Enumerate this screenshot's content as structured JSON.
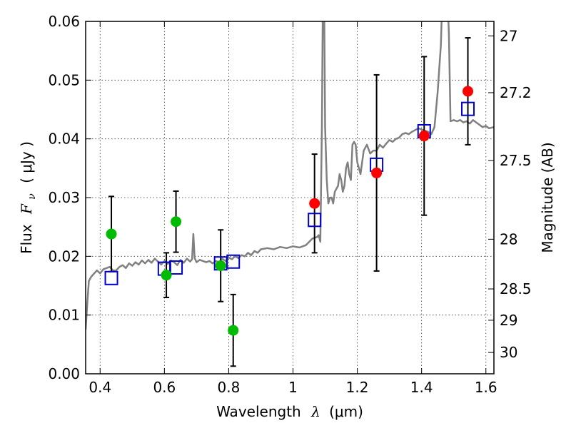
{
  "chart_data": {
    "type": "scatter",
    "xlabel": {
      "prefix": "Wavelength",
      "symbol": "λ",
      "unit": "(μm)"
    },
    "ylabel": {
      "prefix": "Flux",
      "symbol": "F",
      "sub": "ν",
      "unit": "( μJy )"
    },
    "y2label": "Magnitude (AB)",
    "xlim": [
      0.355,
      1.625
    ],
    "ylim": [
      0.0,
      0.06
    ],
    "xticks": [
      0.4,
      0.6,
      0.8,
      1.0,
      1.2,
      1.4,
      1.6
    ],
    "xtick_labels": [
      "0.4",
      "0.6",
      "0.8",
      "1",
      "1.2",
      "1.4",
      "1.6"
    ],
    "yticks": [
      0.0,
      0.01,
      0.02,
      0.03,
      0.04,
      0.05,
      0.06
    ],
    "ytick_labels": [
      "0.00",
      "0.01",
      "0.02",
      "0.03",
      "0.04",
      "0.05",
      "0.06"
    ],
    "mag_ticks": [
      {
        "label": "27",
        "flux": 0.05754
      },
      {
        "label": "27.2",
        "flux": 0.04786
      },
      {
        "label": "27.5",
        "flux": 0.03631
      },
      {
        "label": "28",
        "flux": 0.02291
      },
      {
        "label": "28.5",
        "flux": 0.01445
      },
      {
        "label": "29",
        "flux": 0.00912
      },
      {
        "label": "30",
        "flux": 0.00363
      }
    ],
    "grid": true,
    "colors": {
      "green": "#00bb00",
      "red": "#ff0000",
      "model": "#0000cc",
      "sed": "#808080"
    },
    "observed_green": [
      {
        "x": 0.435,
        "y": 0.0238,
        "err": 0.0064
      },
      {
        "x": 0.606,
        "y": 0.0168,
        "err": 0.0038
      },
      {
        "x": 0.636,
        "y": 0.0259,
        "err": 0.0052
      },
      {
        "x": 0.775,
        "y": 0.0184,
        "err": 0.0061
      },
      {
        "x": 0.814,
        "y": 0.0074,
        "err": 0.0061
      }
    ],
    "observed_red": [
      {
        "x": 1.067,
        "y": 0.029,
        "err": 0.0084
      },
      {
        "x": 1.26,
        "y": 0.0342,
        "err": 0.0167
      },
      {
        "x": 1.408,
        "y": 0.0405,
        "err": 0.0135
      },
      {
        "x": 1.544,
        "y": 0.0481,
        "err": 0.0091
      }
    ],
    "model_fluxes": [
      {
        "x": 0.435,
        "y": 0.0163
      },
      {
        "x": 0.6,
        "y": 0.0179
      },
      {
        "x": 0.636,
        "y": 0.0181
      },
      {
        "x": 0.775,
        "y": 0.0188
      },
      {
        "x": 0.814,
        "y": 0.0191
      },
      {
        "x": 1.067,
        "y": 0.0262
      },
      {
        "x": 1.26,
        "y": 0.0356
      },
      {
        "x": 1.408,
        "y": 0.0413
      },
      {
        "x": 1.544,
        "y": 0.0451
      }
    ],
    "sed_curve": [
      [
        0.355,
        0.0075
      ],
      [
        0.36,
        0.012
      ],
      [
        0.365,
        0.0158
      ],
      [
        0.372,
        0.0165
      ],
      [
        0.38,
        0.017
      ],
      [
        0.39,
        0.0176
      ],
      [
        0.4,
        0.0171
      ],
      [
        0.41,
        0.0178
      ],
      [
        0.42,
        0.018
      ],
      [
        0.43,
        0.0182
      ],
      [
        0.44,
        0.0176
      ],
      [
        0.45,
        0.0176
      ],
      [
        0.46,
        0.0182
      ],
      [
        0.47,
        0.0185
      ],
      [
        0.48,
        0.018
      ],
      [
        0.49,
        0.0188
      ],
      [
        0.5,
        0.0184
      ],
      [
        0.51,
        0.019
      ],
      [
        0.52,
        0.0186
      ],
      [
        0.53,
        0.0193
      ],
      [
        0.54,
        0.0188
      ],
      [
        0.55,
        0.0194
      ],
      [
        0.56,
        0.0189
      ],
      [
        0.57,
        0.0196
      ],
      [
        0.58,
        0.0191
      ],
      [
        0.59,
        0.0186
      ],
      [
        0.6,
        0.0192
      ],
      [
        0.61,
        0.0187
      ],
      [
        0.62,
        0.0193
      ],
      [
        0.63,
        0.019
      ],
      [
        0.64,
        0.0185
      ],
      [
        0.65,
        0.0194
      ],
      [
        0.66,
        0.0189
      ],
      [
        0.67,
        0.0196
      ],
      [
        0.68,
        0.0191
      ],
      [
        0.686,
        0.0195
      ],
      [
        0.69,
        0.0238
      ],
      [
        0.694,
        0.0197
      ],
      [
        0.7,
        0.019
      ],
      [
        0.71,
        0.0194
      ],
      [
        0.72,
        0.0192
      ],
      [
        0.73,
        0.019
      ],
      [
        0.74,
        0.0192
      ],
      [
        0.75,
        0.0188
      ],
      [
        0.76,
        0.0192
      ],
      [
        0.77,
        0.019
      ],
      [
        0.78,
        0.0196
      ],
      [
        0.79,
        0.0192
      ],
      [
        0.8,
        0.0198
      ],
      [
        0.81,
        0.0195
      ],
      [
        0.82,
        0.02
      ],
      [
        0.83,
        0.0197
      ],
      [
        0.84,
        0.0202
      ],
      [
        0.85,
        0.02
      ],
      [
        0.86,
        0.0206
      ],
      [
        0.87,
        0.0202
      ],
      [
        0.88,
        0.0209
      ],
      [
        0.89,
        0.0206
      ],
      [
        0.9,
        0.0212
      ],
      [
        0.92,
        0.0214
      ],
      [
        0.94,
        0.0212
      ],
      [
        0.96,
        0.0216
      ],
      [
        0.98,
        0.0214
      ],
      [
        1.0,
        0.0217
      ],
      [
        1.02,
        0.0215
      ],
      [
        1.04,
        0.0219
      ],
      [
        1.06,
        0.023
      ],
      [
        1.075,
        0.0233
      ],
      [
        1.08,
        0.0236
      ],
      [
        1.085,
        0.0225
      ],
      [
        1.09,
        0.042
      ],
      [
        1.093,
        0.065
      ],
      [
        1.097,
        0.063
      ],
      [
        1.1,
        0.042
      ],
      [
        1.105,
        0.033
      ],
      [
        1.11,
        0.029
      ],
      [
        1.115,
        0.03
      ],
      [
        1.12,
        0.03
      ],
      [
        1.125,
        0.029
      ],
      [
        1.13,
        0.031
      ],
      [
        1.14,
        0.032
      ],
      [
        1.145,
        0.034
      ],
      [
        1.15,
        0.033
      ],
      [
        1.155,
        0.031
      ],
      [
        1.16,
        0.032
      ],
      [
        1.165,
        0.035
      ],
      [
        1.17,
        0.036
      ],
      [
        1.175,
        0.034
      ],
      [
        1.18,
        0.033
      ],
      [
        1.185,
        0.039
      ],
      [
        1.19,
        0.0395
      ],
      [
        1.195,
        0.039
      ],
      [
        1.2,
        0.036
      ],
      [
        1.21,
        0.034
      ],
      [
        1.22,
        0.038
      ],
      [
        1.23,
        0.039
      ],
      [
        1.24,
        0.0375
      ],
      [
        1.25,
        0.038
      ],
      [
        1.26,
        0.038
      ],
      [
        1.27,
        0.039
      ],
      [
        1.28,
        0.0385
      ],
      [
        1.29,
        0.0392
      ],
      [
        1.3,
        0.0398
      ],
      [
        1.31,
        0.0395
      ],
      [
        1.32,
        0.04
      ],
      [
        1.33,
        0.0402
      ],
      [
        1.34,
        0.0408
      ],
      [
        1.35,
        0.041
      ],
      [
        1.36,
        0.0408
      ],
      [
        1.37,
        0.0412
      ],
      [
        1.38,
        0.0415
      ],
      [
        1.39,
        0.0418
      ],
      [
        1.4,
        0.0416
      ],
      [
        1.41,
        0.0414
      ],
      [
        1.42,
        0.0412
      ],
      [
        1.43,
        0.0408
      ],
      [
        1.44,
        0.042
      ],
      [
        1.45,
        0.048
      ],
      [
        1.46,
        0.056
      ],
      [
        1.465,
        0.065
      ],
      [
        1.48,
        0.065
      ],
      [
        1.485,
        0.058
      ],
      [
        1.49,
        0.043
      ],
      [
        1.5,
        0.0432
      ],
      [
        1.51,
        0.043
      ],
      [
        1.52,
        0.0432
      ],
      [
        1.53,
        0.0428
      ],
      [
        1.54,
        0.043
      ],
      [
        1.55,
        0.0426
      ],
      [
        1.56,
        0.0432
      ],
      [
        1.57,
        0.0428
      ],
      [
        1.58,
        0.0424
      ],
      [
        1.59,
        0.042
      ],
      [
        1.6,
        0.0422
      ],
      [
        1.61,
        0.0418
      ],
      [
        1.625,
        0.042
      ]
    ]
  }
}
